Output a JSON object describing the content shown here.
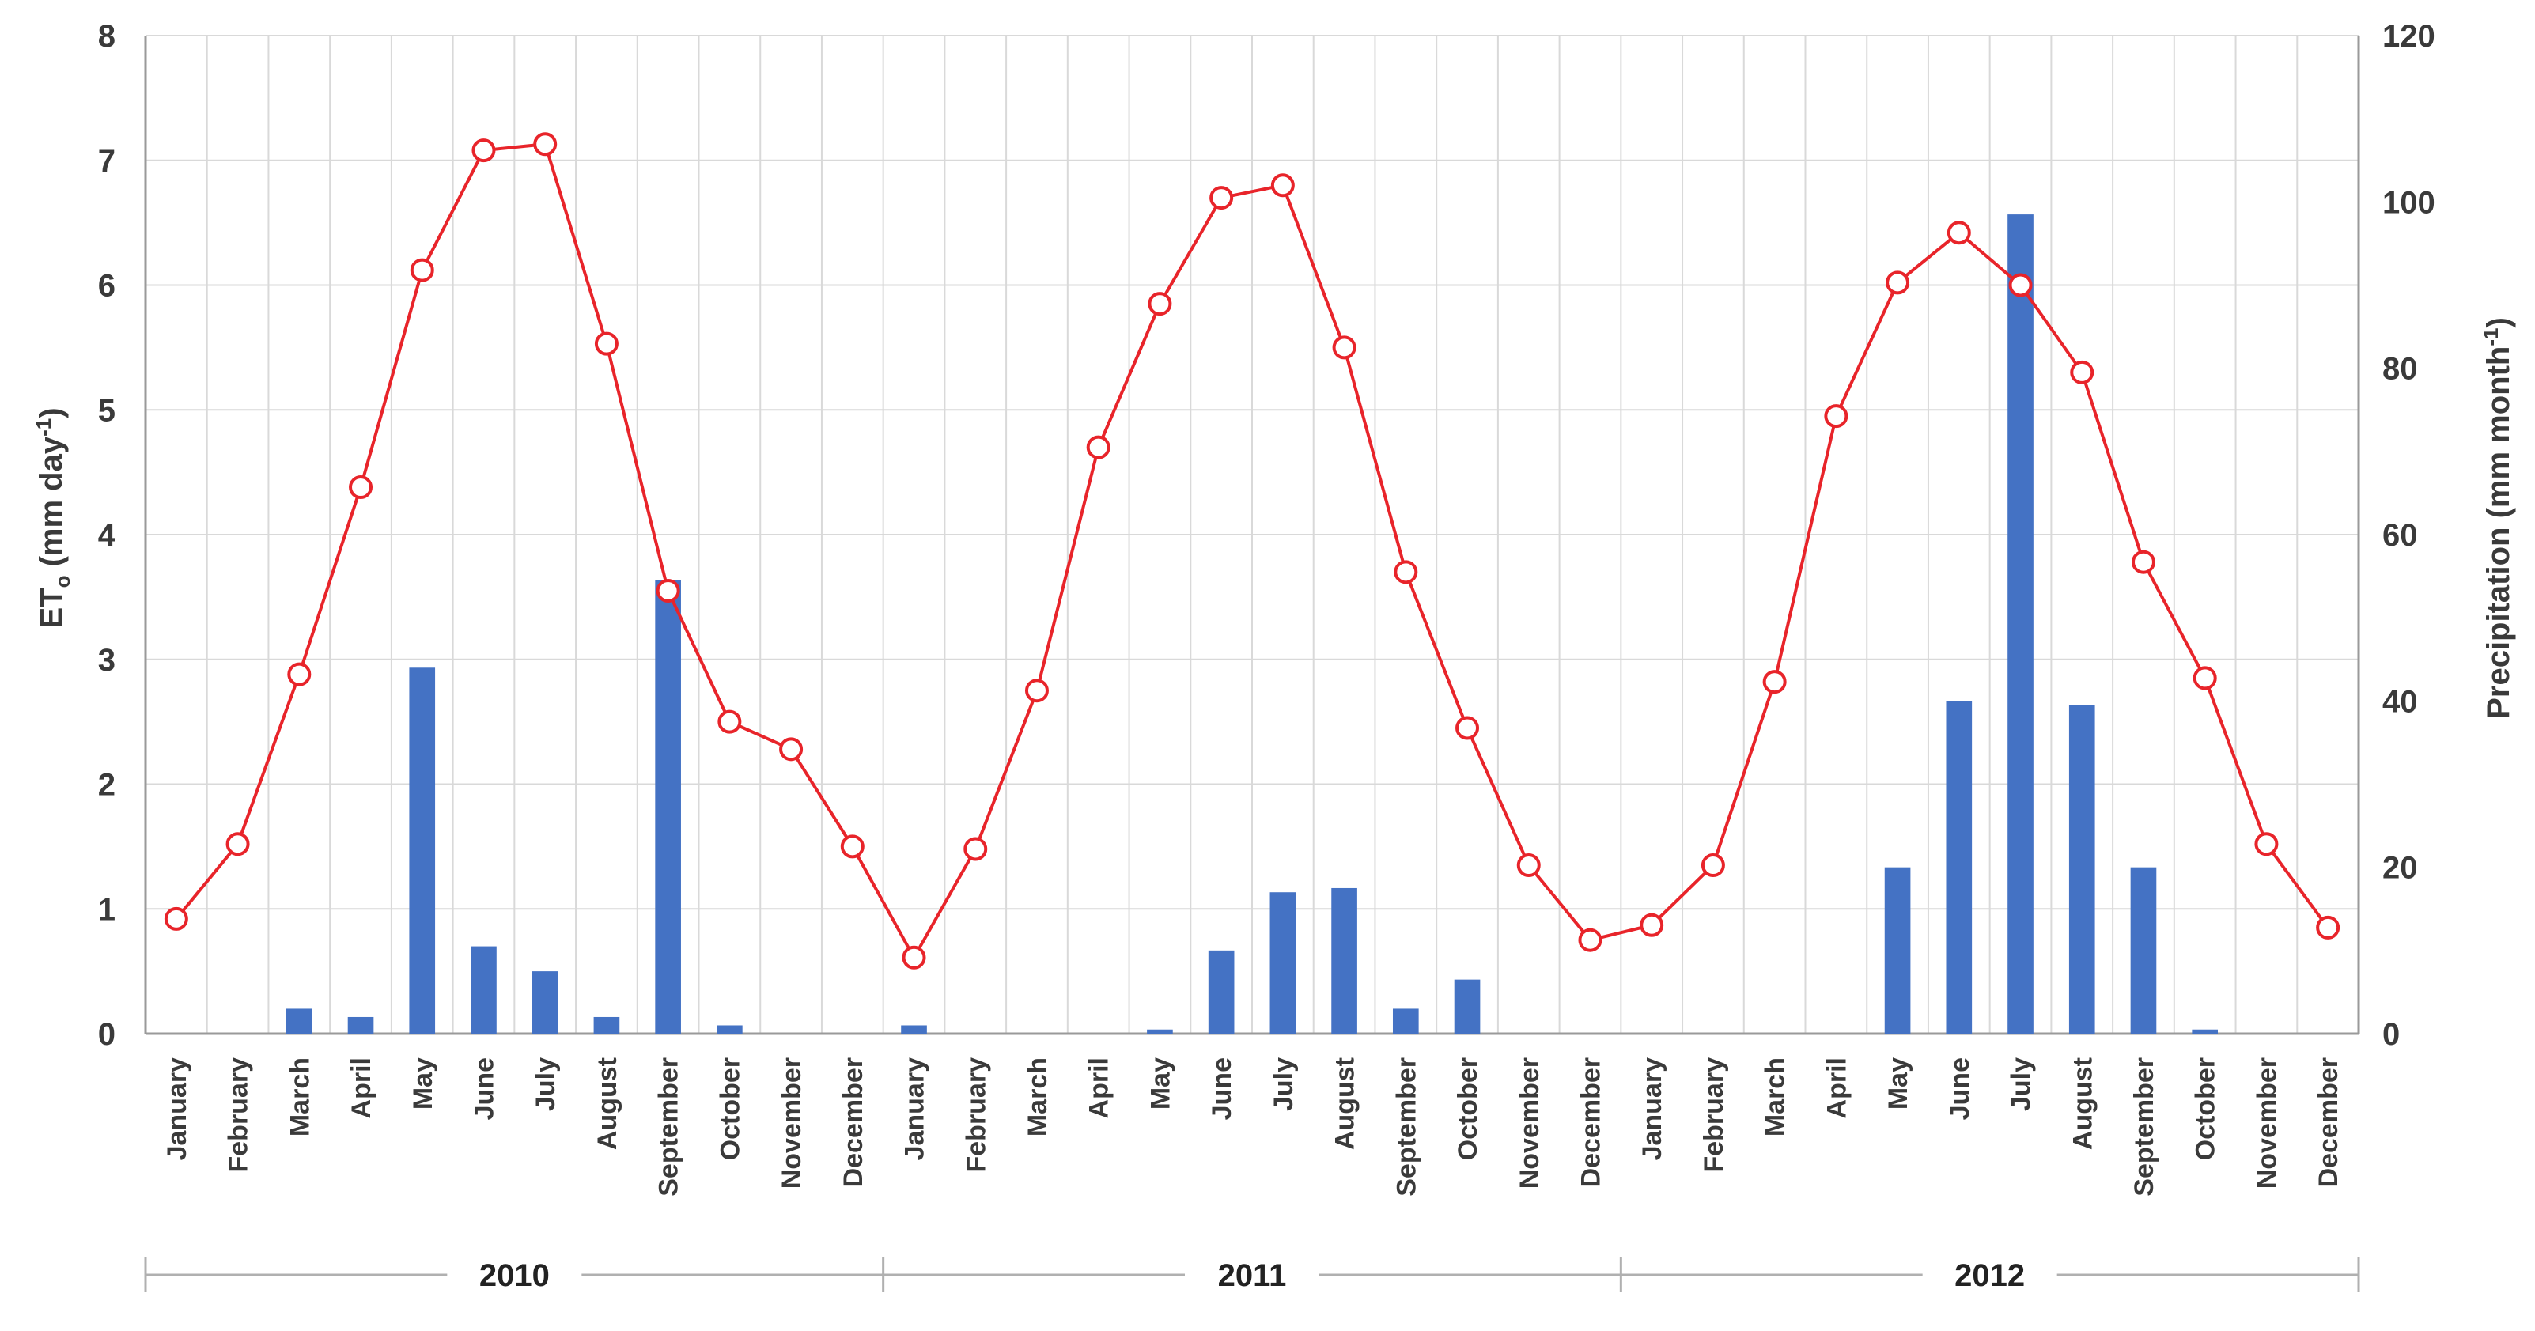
{
  "chart_data": {
    "type": "bar+line",
    "title": "",
    "months": [
      "January",
      "February",
      "March",
      "April",
      "May",
      "June",
      "July",
      "August",
      "September",
      "October",
      "November",
      "December"
    ],
    "years": [
      "2010",
      "2011",
      "2012"
    ],
    "y_left": {
      "label_main": "ET",
      "label_sub": "o",
      "label_unit": " (mm day",
      "label_sup": "-1",
      "label_end": ")",
      "range": [
        0,
        8
      ],
      "ticks": [
        0,
        1,
        2,
        3,
        4,
        5,
        6,
        7,
        8
      ]
    },
    "y_right": {
      "label_main": "Precipitation (mm month",
      "label_sup": "-1",
      "label_end": ")",
      "range": [
        0,
        120
      ],
      "ticks": [
        0,
        20,
        40,
        60,
        80,
        100,
        120
      ]
    },
    "grid": true,
    "series": [
      {
        "kind": "line",
        "axis": "left",
        "color": "#e8242a",
        "values": [
          0.92,
          1.52,
          2.88,
          4.38,
          6.12,
          7.08,
          7.13,
          5.53,
          3.55,
          2.5,
          2.28,
          1.5,
          0.61,
          1.48,
          2.75,
          4.7,
          5.85,
          6.7,
          6.8,
          5.5,
          3.7,
          2.45,
          1.35,
          0.75,
          0.87,
          1.35,
          2.82,
          4.95,
          6.02,
          6.42,
          6.0,
          5.3,
          3.78,
          2.85,
          1.52,
          0.85
        ]
      },
      {
        "kind": "bar",
        "axis": "right",
        "color": "#4472c4",
        "values": [
          0,
          0,
          3,
          2,
          44,
          10.5,
          7.5,
          2,
          54.5,
          1,
          0,
          0,
          1,
          0,
          0,
          0,
          0.5,
          10,
          17,
          17.5,
          3,
          6.5,
          0,
          0,
          0,
          0,
          0,
          0,
          20,
          40,
          98.5,
          39.5,
          20,
          0.5,
          0,
          0
        ]
      }
    ]
  }
}
